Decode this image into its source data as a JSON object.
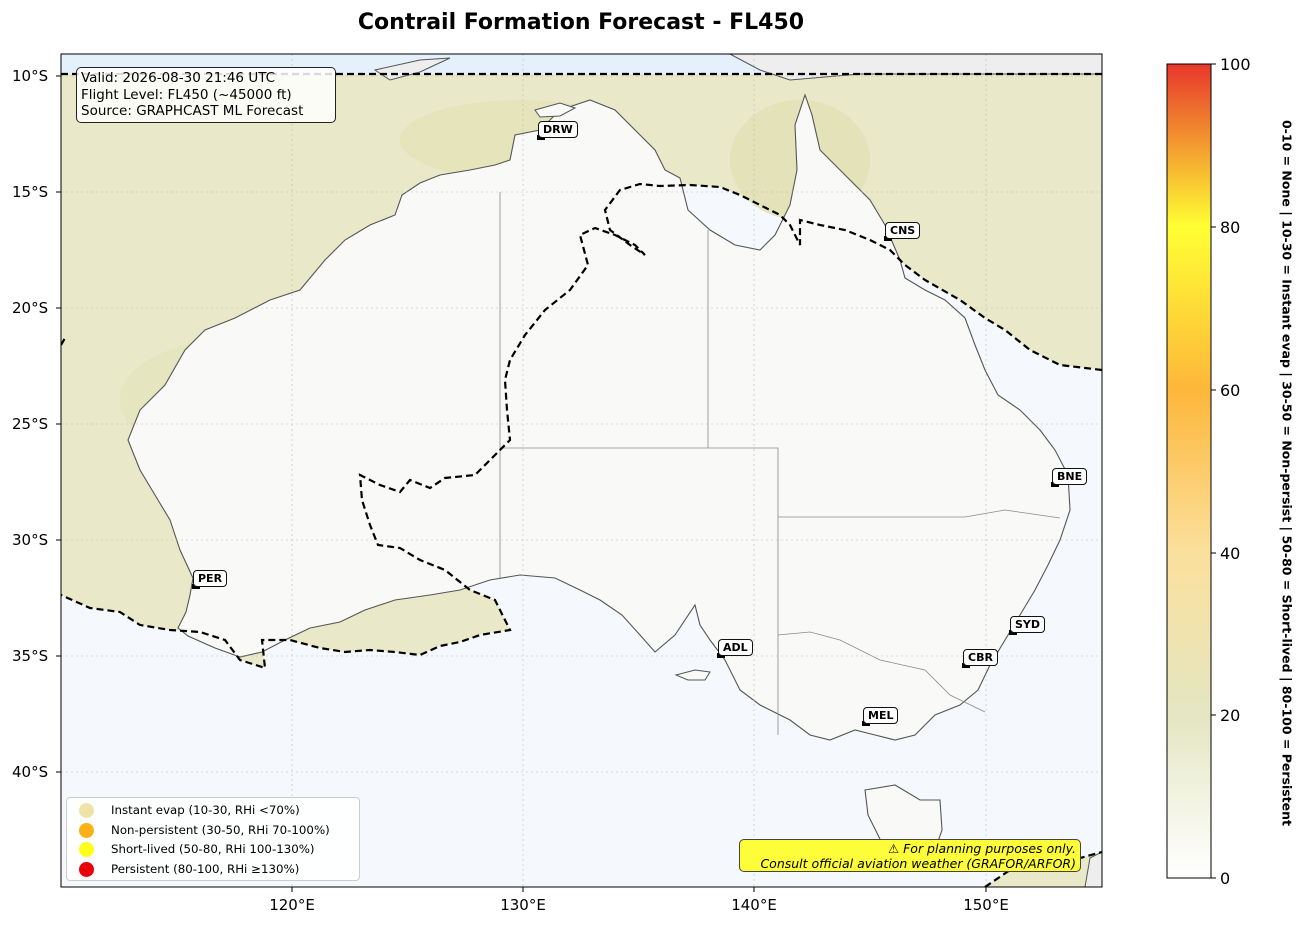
{
  "title": "Contrail Formation Forecast - FL450",
  "info": {
    "valid": "Valid: 2026-08-30 21:46 UTC",
    "flight_level": "Flight Level: FL450 (~45000 ft)",
    "source": "Source: GRAPHCAST ML Forecast"
  },
  "lat_labels": [
    "10°S",
    "15°S",
    "20°S",
    "25°S",
    "30°S",
    "35°S",
    "40°S"
  ],
  "lon_labels": [
    "120°E",
    "130°E",
    "140°E",
    "150°E"
  ],
  "cities": [
    {
      "code": "DRW"
    },
    {
      "code": "CNS"
    },
    {
      "code": "BNE"
    },
    {
      "code": "PER"
    },
    {
      "code": "SYD"
    },
    {
      "code": "ADL"
    },
    {
      "code": "CBR"
    },
    {
      "code": "MEL"
    }
  ],
  "legend": [
    {
      "label": "Instant evap (10-30, RHi <70%)",
      "color": "#f0e3a8"
    },
    {
      "label": "Non-persistent (30-50, RHi 70-100%)",
      "color": "#fbb117"
    },
    {
      "label": "Short-lived (50-80, RHi 100-130%)",
      "color": "#ffff1a"
    },
    {
      "label": "Persistent (80-100, RHi ≥130%)",
      "color": "#e8000b"
    }
  ],
  "warning": {
    "line1": "⚠ For planning purposes only.",
    "line2": "Consult official aviation weather (GRAFOR/ARFOR)"
  },
  "colorbar": {
    "ticks": [
      "0",
      "20",
      "40",
      "60",
      "80",
      "100"
    ],
    "label": "0-10 = None  |  10-30 = Instant evap  |  30-50 = Non-persist  |  50-80 = Short-lived  |  80-100 = Persistent",
    "colors": [
      "#ffffff",
      "#e4e6c2",
      "#fbe09c",
      "#fdb73a",
      "#ffff33",
      "#e8372c"
    ]
  }
}
